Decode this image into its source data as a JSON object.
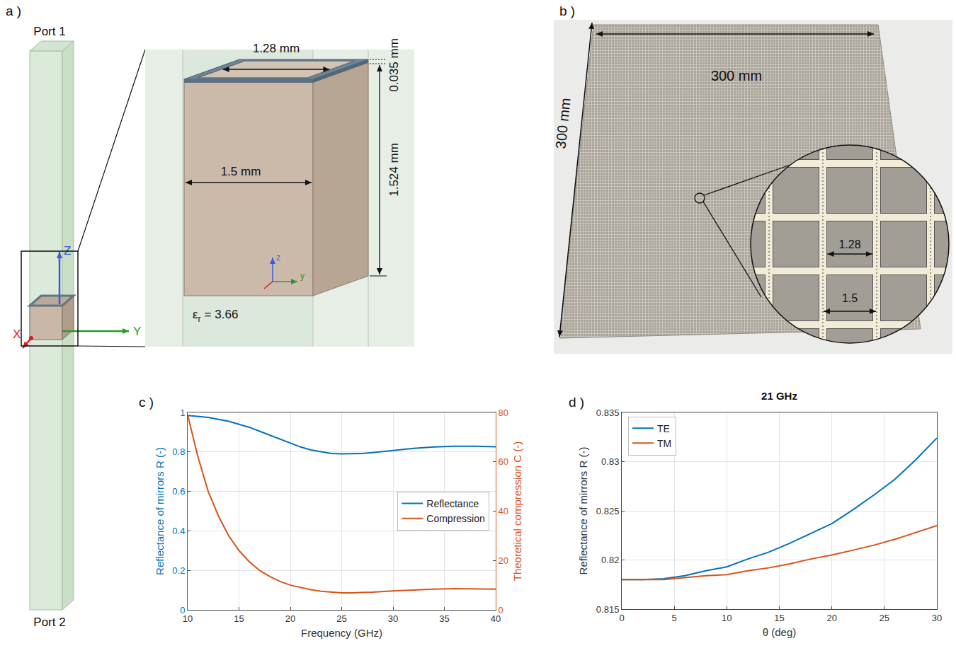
{
  "panel_labels": [
    "a )",
    "b )",
    "c )",
    "d )"
  ],
  "diagram": {
    "port_top": "Port 1",
    "port_bottom": "Port 2",
    "axes": {
      "x": "X",
      "y": "Y",
      "z": "Z"
    },
    "inset_axes": {
      "y": "y",
      "z": "z"
    },
    "dimensions": {
      "ring_inner": "1.28 mm",
      "cell": "1.5 mm",
      "metal": "0.035 mm",
      "substrate": "1.524 mm"
    },
    "permittivity": {
      "symbol": "ε",
      "subscript": "r",
      "text": "= 3.66"
    }
  },
  "photo": {
    "width": "300 mm",
    "height": "300 mm",
    "inset": {
      "square": "1.28",
      "pitch": "1.5"
    }
  },
  "chart_data": [
    {
      "type": "line",
      "x": [
        10,
        11,
        12,
        13,
        14,
        15,
        16,
        17,
        18,
        19,
        20,
        21,
        22,
        23,
        24,
        25,
        26,
        27,
        28,
        30,
        32,
        34,
        36,
        38,
        40
      ],
      "series": [
        {
          "name": "Reflectance",
          "color": "#0072BD",
          "values": [
            0.985,
            0.98,
            0.975,
            0.965,
            0.955,
            0.94,
            0.925,
            0.905,
            0.885,
            0.865,
            0.845,
            0.825,
            0.81,
            0.8,
            0.792,
            0.79,
            0.79,
            0.792,
            0.797,
            0.808,
            0.818,
            0.825,
            0.829,
            0.829,
            0.826
          ]
        },
        {
          "name": "Compression",
          "color": "#D95319",
          "axis": "y2",
          "values": [
            79,
            62,
            48,
            38,
            30,
            24,
            19.5,
            16,
            13.5,
            11.5,
            10,
            9,
            8.2,
            7.5,
            7.1,
            6.9,
            6.9,
            7.0,
            7.2,
            7.7,
            8.1,
            8.4,
            8.6,
            8.6,
            8.4
          ]
        }
      ],
      "xlabel": "Frequency (GHz)",
      "ylabel": "Reflectance of mirrors R (-)",
      "y2label": "Theoretical compression C (-)",
      "xlim": [
        10,
        40
      ],
      "xticks": [
        10,
        15,
        20,
        25,
        30,
        35,
        40
      ],
      "ylim": [
        0,
        1
      ],
      "yticks": [
        0,
        0.2,
        0.4,
        0.6,
        0.8,
        1
      ],
      "y2lim": [
        0,
        80
      ],
      "y2ticks": [
        0,
        20,
        40,
        60,
        80
      ],
      "grid": true,
      "legend": "right"
    },
    {
      "type": "line",
      "title": "21 GHz",
      "x": [
        0,
        2,
        4,
        6,
        8,
        10,
        12,
        14,
        16,
        18,
        20,
        22,
        24,
        26,
        28,
        30
      ],
      "series": [
        {
          "name": "TE",
          "color": "#0072BD",
          "values": [
            0.818,
            0.818,
            0.8181,
            0.8184,
            0.8189,
            0.8193,
            0.8201,
            0.8208,
            0.8217,
            0.8227,
            0.8237,
            0.8251,
            0.8266,
            0.8282,
            0.8302,
            0.8324
          ]
        },
        {
          "name": "TM",
          "color": "#D95319",
          "values": [
            0.818,
            0.818,
            0.818,
            0.8182,
            0.8184,
            0.8185,
            0.8189,
            0.8192,
            0.8196,
            0.8201,
            0.8205,
            0.821,
            0.8215,
            0.8221,
            0.8228,
            0.8235
          ]
        }
      ],
      "xlabel": "θ (deg)",
      "ylabel": "Reflectance of mirrors R (-)",
      "xlim": [
        0,
        30
      ],
      "xticks": [
        0,
        5,
        10,
        15,
        20,
        25,
        30
      ],
      "ylim": [
        0.815,
        0.835
      ],
      "yticks": [
        0.815,
        0.82,
        0.825,
        0.83,
        0.835
      ],
      "grid": true,
      "legend": "upper left"
    }
  ]
}
